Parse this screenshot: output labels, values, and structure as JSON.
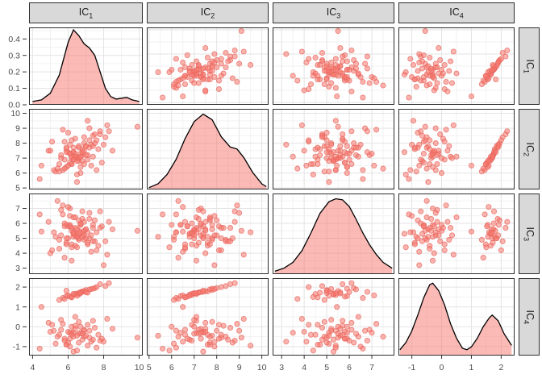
{
  "chart_data": {
    "type": "scatter",
    "chart_kind": "scatterplot-matrix-with-diagonal-densities",
    "title": "",
    "legend": "none",
    "grid": "on",
    "variables": [
      {
        "id": "IC1",
        "label_base": "IC",
        "label_sub": "1",
        "range": [
          3.8,
          10.2
        ],
        "tick_values": [
          4,
          6,
          8,
          10
        ],
        "tick_labels": [
          "4",
          "6",
          "8",
          "10"
        ]
      },
      {
        "id": "IC2",
        "label_base": "IC",
        "label_sub": "2",
        "range": [
          4.9,
          10.3
        ],
        "tick_values": [
          5,
          6,
          7,
          8,
          9,
          10
        ],
        "tick_labels": [
          "5",
          "6",
          "7",
          "8",
          "9",
          "10"
        ]
      },
      {
        "id": "IC3",
        "label_base": "IC",
        "label_sub": "3",
        "range": [
          2.6,
          8.0
        ],
        "tick_values": [
          3,
          4,
          5,
          6,
          7
        ],
        "tick_labels": [
          "3",
          "4",
          "5",
          "6",
          "7"
        ]
      },
      {
        "id": "IC4",
        "label_base": "IC",
        "label_sub": "4",
        "range": [
          -1.45,
          2.45
        ],
        "tick_values": [
          -1,
          0,
          1,
          2
        ],
        "tick_labels": [
          "-1",
          "0",
          "1",
          "2"
        ]
      }
    ],
    "density_y_axis": {
      "range": [
        0,
        0.47
      ],
      "tick_values": [
        0,
        0.1,
        0.2,
        0.3,
        0.4
      ],
      "tick_labels": [
        "0.0",
        "0.1",
        "0.2",
        "0.3",
        "0.4"
      ]
    },
    "n_points": 91,
    "observations": {
      "IC1": [
        6.3,
        5.8,
        7.1,
        6.6,
        5.2,
        6.9,
        7.4,
        6.1,
        5.5,
        6.4,
        7.8,
        6.2,
        5.9,
        6.7,
        7.2,
        4.9,
        6.5,
        7.0,
        5.6,
        6.8,
        8.2,
        6.0,
        5.3,
        7.5,
        6.3,
        6.6,
        5.7,
        7.3,
        6.1,
        6.9,
        4.4,
        7.7,
        6.4,
        5.8,
        6.2,
        7.1,
        6.6,
        5.4,
        8.5,
        6.0,
        6.8,
        7.9,
        5.1,
        6.3,
        7.2,
        6.5,
        5.9,
        6.7,
        9.9,
        6.1,
        7.4,
        5.6,
        6.9,
        8.0,
        6.2,
        7.6,
        5.0,
        6.4,
        6.6,
        7.1,
        5.9,
        6.8,
        7.5,
        6.2,
        6.5,
        7.0,
        5.7,
        6.3,
        8.1,
        6.7,
        7.3,
        6.0,
        6.4,
        7.8,
        6.9,
        5.8,
        7.2,
        6.6,
        6.1,
        7.6,
        6.3,
        6.8,
        5.5,
        7.0,
        6.5,
        8.3,
        6.2,
        7.4,
        6.7,
        5.9,
        4.5
      ],
      "IC2": [
        7.4,
        8.1,
        6.9,
        7.7,
        6.2,
        8.4,
        7.1,
        7.9,
        6.6,
        7.3,
        8.8,
        7.0,
        7.6,
        6.4,
        8.2,
        7.5,
        5.9,
        7.8,
        7.2,
        6.8,
        9.2,
        7.4,
        6.1,
        8.6,
        7.7,
        7.0,
        8.9,
        6.5,
        7.3,
        8.0,
        5.6,
        7.6,
        8.3,
        6.9,
        7.1,
        9.5,
        7.8,
        6.3,
        7.5,
        8.7,
        7.2,
        6.7,
        8.1,
        7.4,
        9.0,
        5.4,
        7.7,
        6.0,
        9.1,
        7.3,
        8.5,
        7.0,
        6.6,
        7.9,
        8.2,
        6.2,
        7.5,
        7.1,
        6.8,
        7.2,
        6.4,
        7.6,
        8.0,
        6.6,
        7.0,
        7.8,
        6.2,
        6.9,
        8.4,
        7.3,
        7.9,
        6.5,
        7.1,
        8.6,
        7.5,
        6.3,
        7.7,
        7.0,
        6.7,
        8.2,
        6.9,
        7.4,
        6.1,
        7.2,
        6.8,
        8.8,
        6.6,
        7.8,
        7.1,
        7.4,
        6.5
      ],
      "IC3": [
        5.1,
        5.8,
        4.6,
        6.2,
        5.4,
        4.9,
        5.7,
        6.5,
        4.3,
        5.2,
        6.8,
        5.5,
        4.7,
        5.9,
        5.0,
        6.1,
        4.4,
        5.6,
        6.9,
        5.3,
        3.9,
        5.8,
        5.1,
        4.8,
        6.4,
        5.5,
        7.2,
        4.1,
        5.9,
        5.2,
        6.6,
        4.5,
        5.7,
        6.0,
        3.5,
        5.4,
        4.9,
        7.5,
        5.6,
        5.0,
        6.3,
        5.8,
        4.2,
        5.3,
        6.7,
        5.1,
        4.6,
        5.9,
        5.5,
        7.0,
        4.8,
        5.2,
        6.1,
        3.2,
        5.7,
        5.4,
        4.0,
        6.4,
        5.3,
        4.7,
        5.9,
        5.1,
        6.2,
        4.4,
        5.6,
        5.0,
        6.6,
        5.4,
        4.8,
        6.0,
        5.2,
        7.1,
        4.5,
        5.7,
        5.5,
        3.7,
        6.3,
        5.0,
        5.8,
        4.2,
        5.3,
        6.8,
        4.9,
        5.6,
        5.1,
        6.1,
        4.6,
        5.9,
        5.4,
        5.0,
        5.45
      ],
      "IC4": [
        -0.3,
        -0.6,
        0.1,
        -0.8,
        -0.2,
        -0.5,
        0.3,
        -1.0,
        -0.4,
        -0.1,
        -0.7,
        0.0,
        -0.9,
        -0.3,
        -0.55,
        0.2,
        -1.2,
        -0.45,
        -0.15,
        -0.65,
        0.4,
        -0.25,
        -0.85,
        -0.05,
        -0.5,
        -0.35,
        0.15,
        -0.75,
        -0.6,
        -0.2,
        -1.1,
        -0.4,
        0.05,
        -0.7,
        -0.3,
        -0.95,
        0.25,
        -0.5,
        -0.1,
        -0.8,
        -0.35,
        -0.6,
        0.1,
        -1.25,
        -0.2,
        -0.45,
        -0.9,
        0.0,
        -0.55,
        -0.3,
        -0.65,
        0.35,
        -0.15,
        -0.75,
        -0.4,
        -1.05,
        -0.25,
        0.5,
        1.62,
        1.72,
        1.55,
        1.78,
        1.95,
        1.5,
        1.68,
        1.85,
        1.45,
        1.6,
        2.05,
        1.75,
        1.9,
        1.58,
        1.65,
        2.15,
        1.8,
        1.4,
        1.88,
        1.7,
        1.52,
        2.0,
        1.66,
        1.76,
        1.35,
        1.74,
        1.56,
        2.2,
        1.48,
        1.92,
        1.7,
        1.82,
        1.0
      ]
    },
    "densities": {
      "IC1": [
        [
          4.0,
          0.02
        ],
        [
          4.5,
          0.03
        ],
        [
          5.0,
          0.07
        ],
        [
          5.5,
          0.18
        ],
        [
          6.0,
          0.38
        ],
        [
          6.3,
          0.455
        ],
        [
          6.6,
          0.42
        ],
        [
          6.9,
          0.37
        ],
        [
          7.2,
          0.345
        ],
        [
          7.5,
          0.3
        ],
        [
          7.8,
          0.2
        ],
        [
          8.1,
          0.1
        ],
        [
          8.4,
          0.05
        ],
        [
          8.7,
          0.035
        ],
        [
          9.0,
          0.04
        ],
        [
          9.3,
          0.045
        ],
        [
          9.6,
          0.03
        ],
        [
          10.0,
          0.02
        ]
      ],
      "IC2": [
        [
          5.0,
          0.01
        ],
        [
          5.4,
          0.03
        ],
        [
          5.8,
          0.08
        ],
        [
          6.2,
          0.16
        ],
        [
          6.6,
          0.27
        ],
        [
          7.0,
          0.36
        ],
        [
          7.4,
          0.4
        ],
        [
          7.8,
          0.37
        ],
        [
          8.2,
          0.28
        ],
        [
          8.6,
          0.225
        ],
        [
          8.9,
          0.215
        ],
        [
          9.2,
          0.17
        ],
        [
          9.6,
          0.09
        ],
        [
          10.0,
          0.03
        ],
        [
          10.2,
          0.015
        ]
      ],
      "IC3": [
        [
          2.7,
          0.015
        ],
        [
          3.1,
          0.03
        ],
        [
          3.5,
          0.06
        ],
        [
          3.9,
          0.12
        ],
        [
          4.3,
          0.21
        ],
        [
          4.7,
          0.31
        ],
        [
          5.1,
          0.37
        ],
        [
          5.4,
          0.385
        ],
        [
          5.7,
          0.38
        ],
        [
          6.0,
          0.345
        ],
        [
          6.3,
          0.28
        ],
        [
          6.6,
          0.21
        ],
        [
          6.9,
          0.15
        ],
        [
          7.2,
          0.1
        ],
        [
          7.5,
          0.06
        ],
        [
          7.9,
          0.03
        ]
      ],
      "IC4": [
        [
          -1.4,
          0.04
        ],
        [
          -1.2,
          0.09
        ],
        [
          -1.0,
          0.17
        ],
        [
          -0.8,
          0.28
        ],
        [
          -0.6,
          0.4
        ],
        [
          -0.4,
          0.49
        ],
        [
          -0.3,
          0.5
        ],
        [
          -0.1,
          0.45
        ],
        [
          0.1,
          0.35
        ],
        [
          0.3,
          0.22
        ],
        [
          0.5,
          0.12
        ],
        [
          0.7,
          0.05
        ],
        [
          0.85,
          0.04
        ],
        [
          1.0,
          0.06
        ],
        [
          1.2,
          0.12
        ],
        [
          1.4,
          0.2
        ],
        [
          1.6,
          0.26
        ],
        [
          1.7,
          0.28
        ],
        [
          1.9,
          0.24
        ],
        [
          2.1,
          0.15
        ],
        [
          2.35,
          0.07
        ]
      ]
    },
    "style": {
      "point_color": "#F8766D",
      "point_stroke": "#E5675E",
      "point_alpha": 0.55,
      "density_fill": "#F8766D",
      "density_fill_alpha": 0.5,
      "density_stroke": "#000000",
      "strip_bg": "#D9D9D9",
      "panel_bg": "#FFFFFF",
      "panel_border": "#2E2E2E",
      "grid_major": "#E3E3E3",
      "grid_minor": "#F2F2F2",
      "axis_text": "#4D4D4D"
    }
  }
}
